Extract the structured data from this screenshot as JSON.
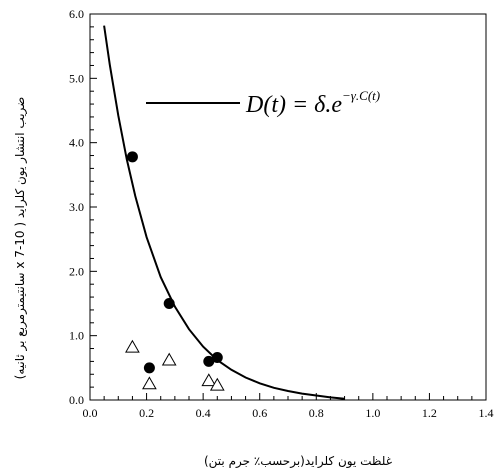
{
  "chart_data": {
    "type": "scatter",
    "title": "",
    "xlabel": "غلظت یون کلراید(برحسب٪ جرم بتن)",
    "ylabel": "ضریب انتشار یون کلراید ( 10-7 x سانتیمترمربع بر ثانیه)",
    "xlim": [
      0,
      1.4
    ],
    "ylim": [
      0,
      6
    ],
    "x_ticks": [
      "0.0",
      "0.2",
      "0.4",
      "0.6",
      "0.8",
      "1.0",
      "1.2",
      "1.4"
    ],
    "y_ticks": [
      "0.0",
      "1.0",
      "2.0",
      "3.0",
      "4.0",
      "5.0",
      "6.0"
    ],
    "x_tick_values": [
      0,
      0.2,
      0.4,
      0.6,
      0.8,
      1.0,
      1.2,
      1.4
    ],
    "y_tick_values": [
      0,
      1,
      2,
      3,
      4,
      5,
      6
    ],
    "grid": false,
    "legend": {
      "label": "D(t) = δ.e^(−γ.C(t))",
      "placement": "top-right"
    },
    "series": [
      {
        "marker": "filled-circle",
        "color": "#000000",
        "points": [
          [
            0.15,
            3.78
          ],
          [
            0.28,
            1.5
          ],
          [
            0.21,
            0.5
          ],
          [
            0.42,
            0.6
          ],
          [
            0.45,
            0.66
          ]
        ]
      },
      {
        "marker": "open-triangle",
        "color": "#000000",
        "points": [
          [
            0.15,
            0.82
          ],
          [
            0.28,
            0.62
          ],
          [
            0.21,
            0.25
          ],
          [
            0.42,
            0.3
          ],
          [
            0.45,
            0.23
          ]
        ]
      },
      {
        "marker": "line",
        "color": "#000000",
        "curve": [
          [
            0.05,
            5.82
          ],
          [
            0.07,
            5.21
          ],
          [
            0.1,
            4.42
          ],
          [
            0.13,
            3.74
          ],
          [
            0.16,
            3.17
          ],
          [
            0.2,
            2.53
          ],
          [
            0.25,
            1.91
          ],
          [
            0.3,
            1.45
          ],
          [
            0.35,
            1.1
          ],
          [
            0.4,
            0.83
          ],
          [
            0.45,
            0.62
          ],
          [
            0.5,
            0.47
          ],
          [
            0.55,
            0.35
          ],
          [
            0.6,
            0.26
          ],
          [
            0.65,
            0.19
          ],
          [
            0.7,
            0.14
          ],
          [
            0.75,
            0.1
          ],
          [
            0.8,
            0.07
          ],
          [
            0.85,
            0.04
          ],
          [
            0.9,
            0.02
          ]
        ]
      }
    ]
  }
}
